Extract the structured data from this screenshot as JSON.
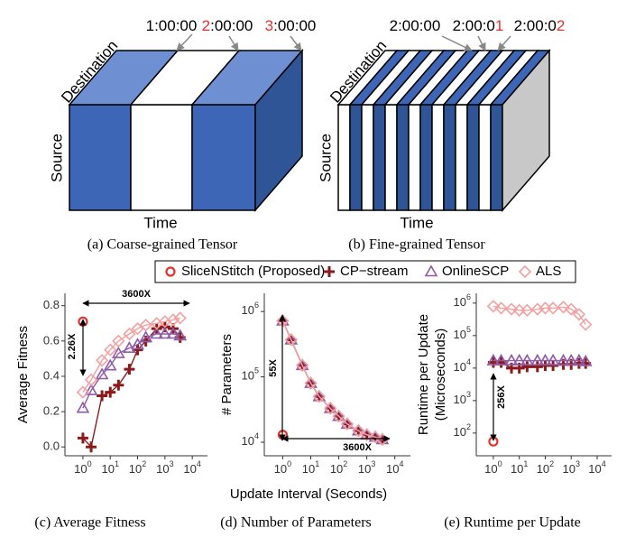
{
  "diagrams": [
    {
      "times": [
        [
          {
            "text": "1:00:00"
          }
        ],
        [
          {
            "text": "2",
            "color": "#e8302c"
          },
          {
            "text": ":00:00"
          }
        ],
        [
          {
            "text": "3",
            "color": "#e8302c"
          },
          {
            "text": ":00:00"
          }
        ]
      ],
      "labels": {
        "destination": "Destination",
        "source": "Source",
        "time": "Time"
      },
      "caption": "(a) Coarse-grained Tensor"
    },
    {
      "times": [
        [
          {
            "text": "2:00:00"
          }
        ],
        [
          {
            "text": "2:00:0"
          },
          {
            "text": "1",
            "color": "#e8302c"
          }
        ],
        [
          {
            "text": "2:00:0"
          },
          {
            "text": "2",
            "color": "#e8302c"
          }
        ]
      ],
      "labels": {
        "destination": "Destination",
        "source": "Source",
        "time": "Time"
      },
      "caption": "(b) Fine-grained Tensor"
    }
  ],
  "x_label": "Update Interval (Seconds)",
  "chart_data": [
    {
      "type": "line",
      "caption": "(c) Average Fitness",
      "y_label": [
        "Average Fitness"
      ],
      "log_x": true,
      "log_y": false,
      "xlim": [
        0.22,
        36000
      ],
      "xticks": [
        {
          "value": 1,
          "base": "10",
          "exponent": "0"
        },
        {
          "value": 10,
          "base": "10",
          "exponent": "1"
        },
        {
          "value": 100,
          "base": "10",
          "exponent": "2"
        },
        {
          "value": 1000,
          "base": "10",
          "exponent": "3"
        },
        {
          "value": 10000,
          "base": "10",
          "exponent": "4"
        }
      ],
      "ylim": [
        -0.05,
        0.87
      ],
      "yticks": [
        {
          "value": 0,
          "label": "0.0"
        },
        0.2,
        0.4,
        0.6,
        0.8
      ],
      "x": [
        1,
        2,
        5,
        10,
        20,
        50,
        100,
        200,
        500,
        1000,
        2000,
        3600
      ],
      "series": [
        {
          "name": "SliceNStitch (Proposed)",
          "color": "#e8302c",
          "marker": "circle",
          "values": [
            0.71,
            null,
            null,
            null,
            null,
            null,
            null,
            null,
            null,
            null,
            null,
            null
          ]
        },
        {
          "name": "CP−stream",
          "color": "#8b1a1a",
          "marker": "plus",
          "values": [
            0.05,
            0.0,
            0.29,
            0.31,
            0.35,
            0.44,
            0.55,
            0.6,
            0.67,
            0.68,
            0.67,
            0.62
          ]
        },
        {
          "name": "OnlineSCP",
          "color": "#8f5aa8",
          "marker": "triangle",
          "values": [
            0.22,
            0.32,
            0.41,
            0.46,
            0.53,
            0.56,
            0.58,
            0.62,
            0.64,
            0.64,
            0.64,
            0.63
          ]
        },
        {
          "name": "ALS",
          "color": "#f4a0a0",
          "marker": "diamond",
          "values": [
            0.31,
            0.38,
            0.49,
            0.55,
            0.6,
            0.64,
            0.67,
            0.69,
            0.7,
            0.71,
            0.72,
            0.73
          ]
        }
      ],
      "annotations": [
        {
          "text": "3600X"
        },
        {
          "text": "2.26X"
        }
      ]
    },
    {
      "type": "line",
      "caption": "(d) Number of Parameters",
      "y_label": [
        "# Parameters"
      ],
      "log_x": true,
      "log_y": true,
      "xlim": [
        0.22,
        36000
      ],
      "xticks": [
        {
          "value": 1,
          "base": "10",
          "exponent": "0"
        },
        {
          "value": 10,
          "base": "10",
          "exponent": "1"
        },
        {
          "value": 100,
          "base": "10",
          "exponent": "2"
        },
        {
          "value": 1000,
          "base": "10",
          "exponent": "3"
        },
        {
          "value": 10000,
          "base": "10",
          "exponent": "4"
        }
      ],
      "ylim": [
        6200,
        1900000
      ],
      "yticks": [
        {
          "value": 10000,
          "base": "10",
          "exponent": "4"
        },
        {
          "value": 100000,
          "base": "10",
          "exponent": "5"
        },
        {
          "value": 1000000,
          "base": "10",
          "exponent": "6"
        }
      ],
      "x": [
        1,
        2,
        5,
        10,
        20,
        50,
        100,
        200,
        500,
        1000,
        2000,
        3600
      ],
      "series": [
        {
          "color": "#e8302c",
          "marker": "circle",
          "values": [
            13000,
            null,
            null,
            null,
            null,
            null,
            null,
            null,
            null,
            null,
            null,
            null
          ]
        },
        {
          "color": "#8b1a1a",
          "marker": "plus",
          "values": [
            720000,
            370000,
            150000,
            80000,
            50000,
            33000,
            25000,
            19000,
            15000,
            13000,
            12000,
            11000
          ]
        },
        {
          "color": "#8f5aa8",
          "marker": "triangle",
          "values": [
            720000,
            370000,
            150000,
            80000,
            50000,
            33000,
            25000,
            19000,
            15000,
            13000,
            12000,
            11000
          ]
        },
        {
          "color": "#f4a0a0",
          "marker": "diamond",
          "values": [
            720000,
            370000,
            150000,
            80000,
            50000,
            33000,
            25000,
            19000,
            15000,
            13000,
            12000,
            11000
          ]
        }
      ],
      "annotations": [
        {
          "text": "55X"
        },
        {
          "text": "3600X"
        }
      ]
    },
    {
      "type": "line",
      "caption": "(e) Runtime per Update",
      "y_label": [
        "Runtime per Update",
        "(Microseconds)"
      ],
      "log_x": true,
      "log_y": true,
      "xlim": [
        0.22,
        36000
      ],
      "xticks": [
        {
          "value": 1,
          "base": "10",
          "exponent": "0"
        },
        {
          "value": 10,
          "base": "10",
          "exponent": "1"
        },
        {
          "value": 100,
          "base": "10",
          "exponent": "2"
        },
        {
          "value": 1000,
          "base": "10",
          "exponent": "3"
        },
        {
          "value": 10000,
          "base": "10",
          "exponent": "4"
        }
      ],
      "ylim": [
        20,
        2000000
      ],
      "yticks": [
        {
          "value": 100,
          "base": "10",
          "exponent": "2"
        },
        {
          "value": 1000,
          "base": "10",
          "exponent": "3"
        },
        {
          "value": 10000,
          "base": "10",
          "exponent": "4"
        },
        {
          "value": 100000,
          "base": "10",
          "exponent": "5"
        },
        {
          "value": 1000000,
          "base": "10",
          "exponent": "6"
        }
      ],
      "x": [
        1,
        2,
        5,
        10,
        20,
        50,
        100,
        200,
        500,
        1000,
        2000,
        3600
      ],
      "series": [
        {
          "color": "#e8302c",
          "marker": "circle",
          "values": [
            55,
            null,
            null,
            null,
            null,
            null,
            null,
            null,
            null,
            null,
            null,
            null
          ]
        },
        {
          "color": "#8b1a1a",
          "marker": "plus",
          "values": [
            15000,
            15000,
            10000,
            10000,
            11000,
            11000,
            12000,
            12000,
            13000,
            13000,
            14000,
            14000
          ]
        },
        {
          "color": "#8f5aa8",
          "marker": "triangle",
          "values": [
            17000,
            17000,
            17000,
            17000,
            17000,
            17000,
            17000,
            17000,
            17000,
            17000,
            17000,
            16000
          ]
        },
        {
          "color": "#f4a0a0",
          "marker": "diamond",
          "values": [
            800000,
            700000,
            650000,
            600000,
            600000,
            650000,
            700000,
            700000,
            750000,
            650000,
            450000,
            220000
          ]
        }
      ],
      "annotations": [
        {
          "text": "256X"
        }
      ]
    }
  ]
}
